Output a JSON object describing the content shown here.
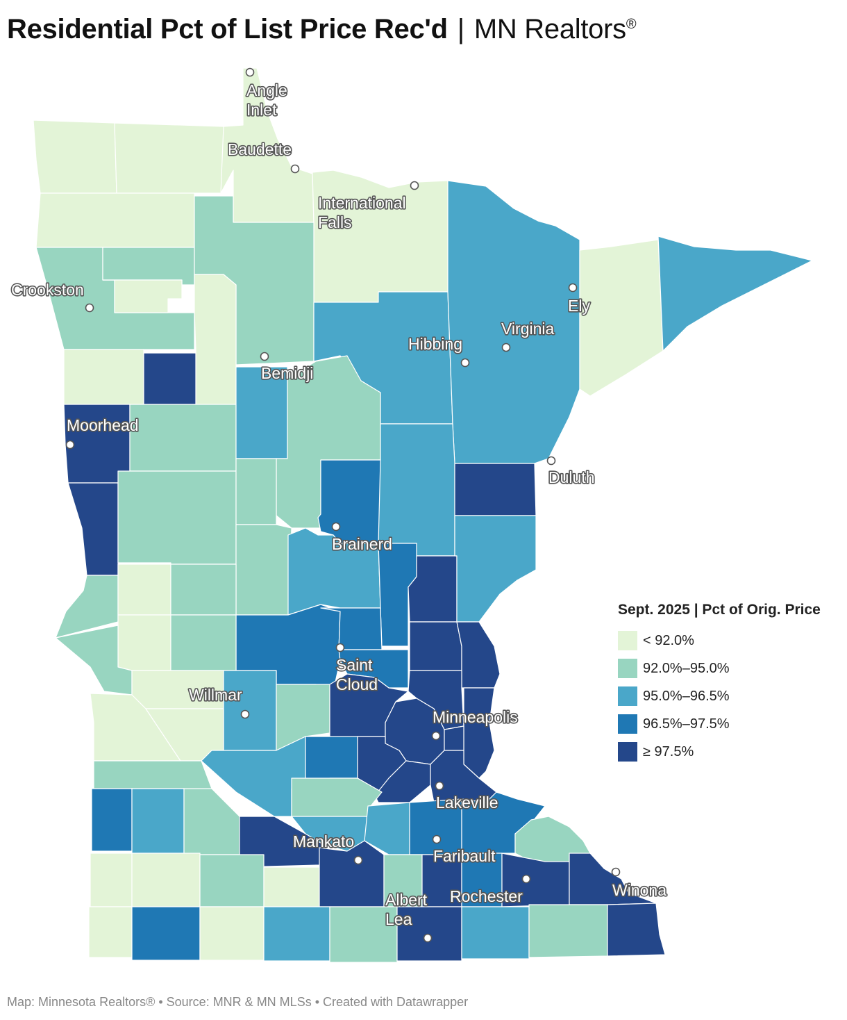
{
  "header": {
    "title_main": "Residential Pct of List Price Rec'd",
    "separator": "|",
    "org": "MN Realtors",
    "reg_mark": "®"
  },
  "colors": {
    "bin1": "#e3f4d7",
    "bin2": "#98d5c0",
    "bin3": "#4aa7c9",
    "bin4": "#1f78b4",
    "bin5": "#24478a"
  },
  "legend": {
    "title": "Sept. 2025 | Pct of Orig. Price",
    "items": [
      {
        "label": "< 92.0%",
        "bin": "bin1"
      },
      {
        "label": "92.0%–95.0%",
        "bin": "bin2"
      },
      {
        "label": "95.0%–96.5%",
        "bin": "bin3"
      },
      {
        "label": "96.5%–97.5%",
        "bin": "bin4"
      },
      {
        "label": "≥ 97.5%",
        "bin": "bin5"
      }
    ]
  },
  "cities": {
    "angle_inlet": [
      "Angle",
      "Inlet"
    ],
    "baudette": "Baudette",
    "international_falls": [
      "International",
      "Falls"
    ],
    "crookston": "Crookston",
    "ely": "Ely",
    "virginia": "Virginia",
    "hibbing": "Hibbing",
    "bemidji": "Bemidji",
    "moorhead": "Moorhead",
    "duluth": "Duluth",
    "brainerd": "Brainerd",
    "saint_cloud": [
      "Saint",
      "Cloud"
    ],
    "willmar": "Willmar",
    "minneapolis": "Minneapolis",
    "lakeville": "Lakeville",
    "mankato": "Mankato",
    "faribault": "Faribault",
    "rochester": "Rochester",
    "winona": "Winona",
    "albert_lea": [
      "Albert",
      "Lea"
    ]
  },
  "footer": "Map: Minnesota Realtors® • Source: MNR & MN MLSs • Created with Datawrapper"
}
